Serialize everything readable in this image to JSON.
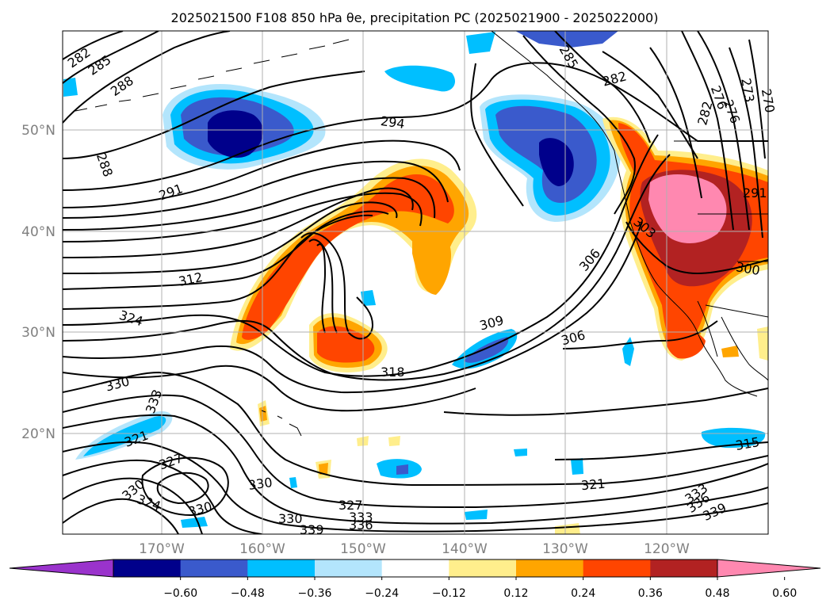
{
  "title": "2025021500 F108 850 hPa θe, precipitation PC (2025021900 - 2025022000)",
  "map": {
    "lat_labels": [
      "50°N",
      "40°N",
      "30°N",
      "20°N"
    ],
    "lon_labels": [
      "170°W",
      "160°W",
      "150°W",
      "140°W",
      "130°W",
      "120°W"
    ],
    "label_color": "#808080",
    "grid_color": "#b0b0b0"
  },
  "contour_labels": [
    "282",
    "285",
    "288",
    "288",
    "291",
    "294",
    "285",
    "282",
    "276",
    "276",
    "273",
    "270",
    "282",
    "309",
    "318",
    "312",
    "324",
    "306",
    "306",
    "303",
    "300",
    "291",
    "330",
    "333",
    "321",
    "327",
    "330",
    "324",
    "330",
    "330",
    "327",
    "330",
    "333",
    "336",
    "339",
    "321",
    "333",
    "336",
    "339",
    "315"
  ],
  "colorbar": {
    "colors": [
      "#9a33cc",
      "#00008b",
      "#3a5acc",
      "#00bfff",
      "#b3e5fc",
      "#ffffff",
      "#ffee8c",
      "#ffa500",
      "#ff4500",
      "#b22222",
      "#ff88b0"
    ],
    "tick_labels": [
      "−0.60",
      "−0.48",
      "−0.36",
      "−0.24",
      "−0.12",
      "0.12",
      "0.24",
      "0.36",
      "0.48",
      "0.60"
    ]
  }
}
